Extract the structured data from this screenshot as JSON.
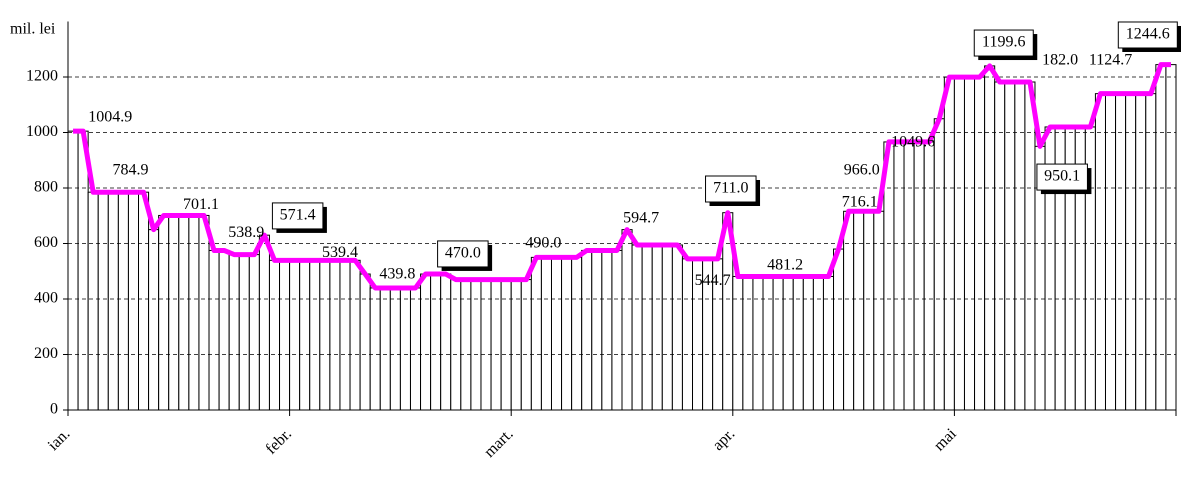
{
  "chart_data": {
    "type": "bar-line",
    "y_label": "mil. lei",
    "categories": [
      "ian.",
      null,
      null,
      null,
      null,
      null,
      null,
      null,
      null,
      null,
      null,
      null,
      null,
      null,
      null,
      null,
      null,
      null,
      null,
      null,
      null,
      null,
      "febr.",
      null,
      null,
      null,
      null,
      null,
      null,
      null,
      null,
      null,
      null,
      null,
      null,
      null,
      null,
      null,
      null,
      null,
      null,
      null,
      null,
      null,
      "mart.",
      null,
      null,
      null,
      null,
      null,
      null,
      null,
      null,
      null,
      null,
      null,
      null,
      null,
      null,
      null,
      null,
      null,
      null,
      null,
      null,
      null,
      "apr.",
      null,
      null,
      null,
      null,
      null,
      null,
      null,
      null,
      null,
      null,
      null,
      null,
      null,
      null,
      null,
      null,
      null,
      null,
      null,
      null,
      null,
      "mai",
      null,
      null,
      null,
      null,
      null,
      null,
      null,
      null,
      null,
      null,
      null,
      null,
      null,
      null,
      null,
      null,
      null,
      null,
      null,
      null,
      null
    ],
    "values": [
      1004.9,
      1004.9,
      784.9,
      784.9,
      784.9,
      784.9,
      784.9,
      784.9,
      650,
      701.1,
      701.1,
      701.1,
      701.1,
      701.1,
      575,
      575,
      560,
      560,
      560,
      630,
      539.4,
      539.4,
      539.4,
      539.4,
      539.4,
      539.4,
      539.4,
      539.4,
      539.4,
      490,
      439.8,
      439.8,
      439.8,
      439.8,
      439.8,
      490,
      490,
      490,
      470,
      470,
      470,
      470,
      470,
      470,
      470,
      470,
      550,
      550,
      550,
      550,
      550,
      575,
      575,
      575,
      575,
      650,
      594.7,
      594.7,
      594.7,
      594.7,
      594.7,
      544.7,
      544.7,
      544.7,
      544.7,
      711,
      481.2,
      481.2,
      481.2,
      481.2,
      481.2,
      481.2,
      481.2,
      481.2,
      481.2,
      481.2,
      580,
      716.1,
      716.1,
      716.1,
      716.1,
      966,
      966,
      966,
      966,
      966,
      1049.6,
      1199.6,
      1199.6,
      1199.6,
      1199.6,
      1240,
      1182,
      1182,
      1182,
      1182,
      950.1,
      1020,
      1020,
      1020,
      1020,
      1020,
      1140,
      1140,
      1140,
      1140,
      1140,
      1140,
      1244.6,
      1244.6
    ],
    "bar_color": "#ffffff",
    "line_color": "#ff00ff",
    "ylim": [
      0,
      1400
    ],
    "yticks": [
      0,
      200,
      400,
      600,
      800,
      1000,
      1200
    ],
    "grid": true,
    "annotations": [
      {
        "text": "1004.9",
        "x": 3.7,
        "y": 1056,
        "boxed": false
      },
      {
        "text": "784.9",
        "x": 5.7,
        "y": 865,
        "boxed": false
      },
      {
        "text": "701.1",
        "x": 12.7,
        "y": 742,
        "boxed": false
      },
      {
        "text": "538.9",
        "x": 17.2,
        "y": 641,
        "boxed": false
      },
      {
        "text": "571.4",
        "x": 22.3,
        "y": 703,
        "boxed": true
      },
      {
        "text": "539.4",
        "x": 26.5,
        "y": 569,
        "boxed": false
      },
      {
        "text": "439.8",
        "x": 32.2,
        "y": 490,
        "boxed": false
      },
      {
        "text": "470.0",
        "x": 38.7,
        "y": 566,
        "boxed": true
      },
      {
        "text": "490.0",
        "x": 46.7,
        "y": 602,
        "boxed": false
      },
      {
        "text": "594.7",
        "x": 56.4,
        "y": 692,
        "boxed": false
      },
      {
        "text": "544.7",
        "x": 63.5,
        "y": 468,
        "boxed": false
      },
      {
        "text": "711.0",
        "x": 65.3,
        "y": 800,
        "boxed": true
      },
      {
        "text": "481.2",
        "x": 70.7,
        "y": 523,
        "boxed": false
      },
      {
        "text": "716.1",
        "x": 78.1,
        "y": 750,
        "boxed": false
      },
      {
        "text": "966.0",
        "x": 78.3,
        "y": 865,
        "boxed": false
      },
      {
        "text": "1049.6",
        "x": 83.4,
        "y": 966,
        "boxed": false
      },
      {
        "text": "182.0",
        "x": 98,
        "y": 1261,
        "boxed": false
      },
      {
        "text": "1124.7",
        "x": 103,
        "y": 1261,
        "boxed": false
      },
      {
        "text": "1199.6",
        "x": 92.4,
        "y": 1326,
        "boxed": true
      },
      {
        "text": "950.1",
        "x": 98.2,
        "y": 843,
        "boxed": true
      },
      {
        "text": "1244.6",
        "x": 106.7,
        "y": 1355,
        "boxed": true
      }
    ]
  }
}
